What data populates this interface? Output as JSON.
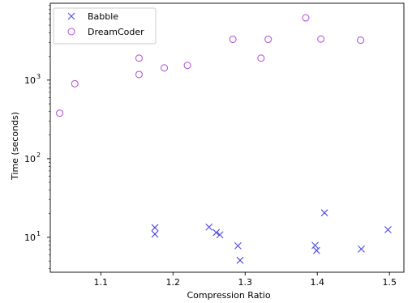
{
  "chart_data": {
    "type": "scatter",
    "title": "",
    "xlabel": "Compression Ratio",
    "ylabel": "Time (seconds)",
    "xlim": [
      1.03,
      1.52
    ],
    "ylim": [
      3.6,
      9500
    ],
    "yscale": "log",
    "x_ticks": [
      1.1,
      1.2,
      1.3,
      1.4,
      1.5
    ],
    "x_tick_labels": [
      "1.1",
      "1.2",
      "1.3",
      "1.4",
      "1.5"
    ],
    "y_ticks": [
      10,
      100,
      1000
    ],
    "y_tick_labels": [
      "10",
      "10",
      "10"
    ],
    "y_tick_exponents": [
      "1",
      "2",
      "3"
    ],
    "grid": false,
    "legend_placement": "top-left",
    "series": [
      {
        "name": "Babble",
        "marker": "x",
        "color": "#4a4ae6",
        "points": [
          [
            1.175,
            13.3
          ],
          [
            1.175,
            11.0
          ],
          [
            1.25,
            13.5
          ],
          [
            1.26,
            11.5
          ],
          [
            1.265,
            10.8
          ],
          [
            1.29,
            7.8
          ],
          [
            1.293,
            5.1
          ],
          [
            1.397,
            7.9
          ],
          [
            1.399,
            6.8
          ],
          [
            1.41,
            20.5
          ],
          [
            1.461,
            7.1
          ],
          [
            1.498,
            12.5
          ]
        ]
      },
      {
        "name": "DreamCoder",
        "marker": "o",
        "color": "#b55ad6",
        "points": [
          [
            1.043,
            380
          ],
          [
            1.064,
            900
          ],
          [
            1.153,
            1900
          ],
          [
            1.153,
            1180
          ],
          [
            1.188,
            1430
          ],
          [
            1.22,
            1540
          ],
          [
            1.283,
            3300
          ],
          [
            1.322,
            1900
          ],
          [
            1.332,
            3300
          ],
          [
            1.384,
            6200
          ],
          [
            1.405,
            3330
          ],
          [
            1.46,
            3220
          ]
        ]
      }
    ]
  }
}
